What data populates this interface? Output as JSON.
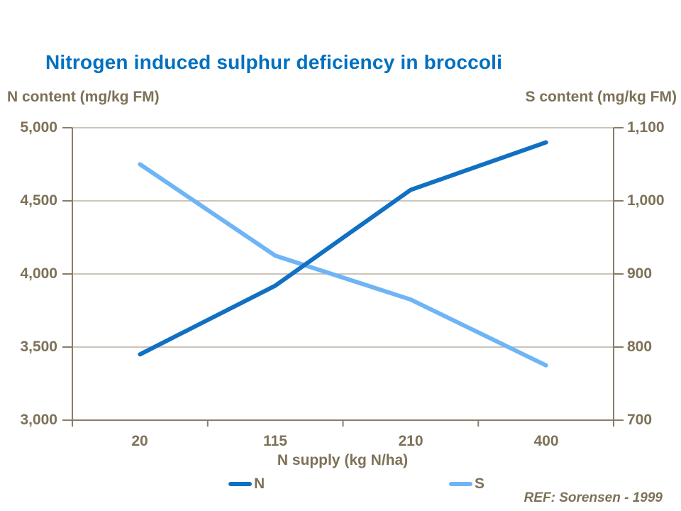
{
  "title": "Nitrogen induced sulphur deficiency in broccoli",
  "left_axis": {
    "label": "N content (mg/kg FM)",
    "ticks": [
      "5,000",
      "4,500",
      "4,000",
      "3,500",
      "3,000"
    ]
  },
  "right_axis": {
    "label": "S content (mg/kg FM)",
    "ticks": [
      "1,100",
      "1,000",
      "900",
      "800",
      "700"
    ]
  },
  "x_axis": {
    "label": "N supply (kg N/ha)",
    "categories": [
      "20",
      "115",
      "210",
      "400"
    ]
  },
  "legend": {
    "items": [
      {
        "label": "N",
        "color": "#1170C2"
      },
      {
        "label": "S",
        "color": "#6FB5F5"
      }
    ]
  },
  "reference": "REF: Sorensen - 1999",
  "colors": {
    "title": "#0070C0",
    "n_line": "#1170C2",
    "s_line": "#6FB5F5",
    "text": "#7D7157",
    "axis": "#8A7D68",
    "grid": "#ACA291"
  },
  "chart_data": {
    "type": "line",
    "title": "Nitrogen induced sulphur deficiency in broccoli",
    "categories": [
      20,
      115,
      210,
      400
    ],
    "series": [
      {
        "name": "N",
        "axis": "left",
        "color": "#1170C2",
        "values": [
          3450,
          3920,
          4575,
          4900
        ]
      },
      {
        "name": "S",
        "axis": "right",
        "color": "#6FB5F5",
        "values": [
          1050,
          925,
          865,
          775
        ]
      }
    ],
    "xlabel": "N supply (kg N/ha)",
    "ylabel_left": "N content (mg/kg FM)",
    "ylabel_right": "S content (mg/kg FM)",
    "ylim_left": [
      3000,
      5000
    ],
    "ylim_right": [
      700,
      1100
    ],
    "ytick_step_left": 500,
    "ytick_step_right": 100,
    "grid": true,
    "legend_position": "bottom"
  }
}
